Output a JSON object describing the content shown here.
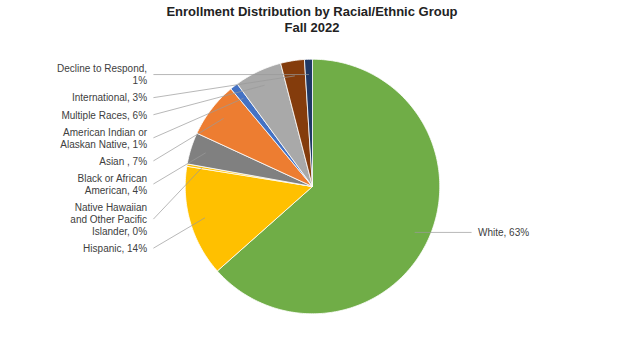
{
  "chart_data": {
    "type": "pie",
    "title": "Enrollment Distribution by Racial/Ethnic Group",
    "subtitle": "Fall 2022",
    "values": [
      63,
      14,
      0.3,
      4,
      7,
      1,
      6,
      3,
      1
    ],
    "colors": [
      "#70AD47",
      "#FFC000",
      "#FFC000",
      "#808080",
      "#ED7D31",
      "#4472C4",
      "#A9A9A9",
      "#843C0C",
      "#1F3864"
    ],
    "annotations": [
      "White, 63%",
      "Hispanic, 14%",
      "Native Hawaiian\nand Other Pacific\nIslander, 0%",
      "Black or African\nAmerican, 4%",
      "Asian , 7%",
      "American Indian or\nAlaskan Native, 1%",
      "Multiple Races, 6%",
      "International, 3%",
      "Decline to Respond,\n1%"
    ]
  }
}
